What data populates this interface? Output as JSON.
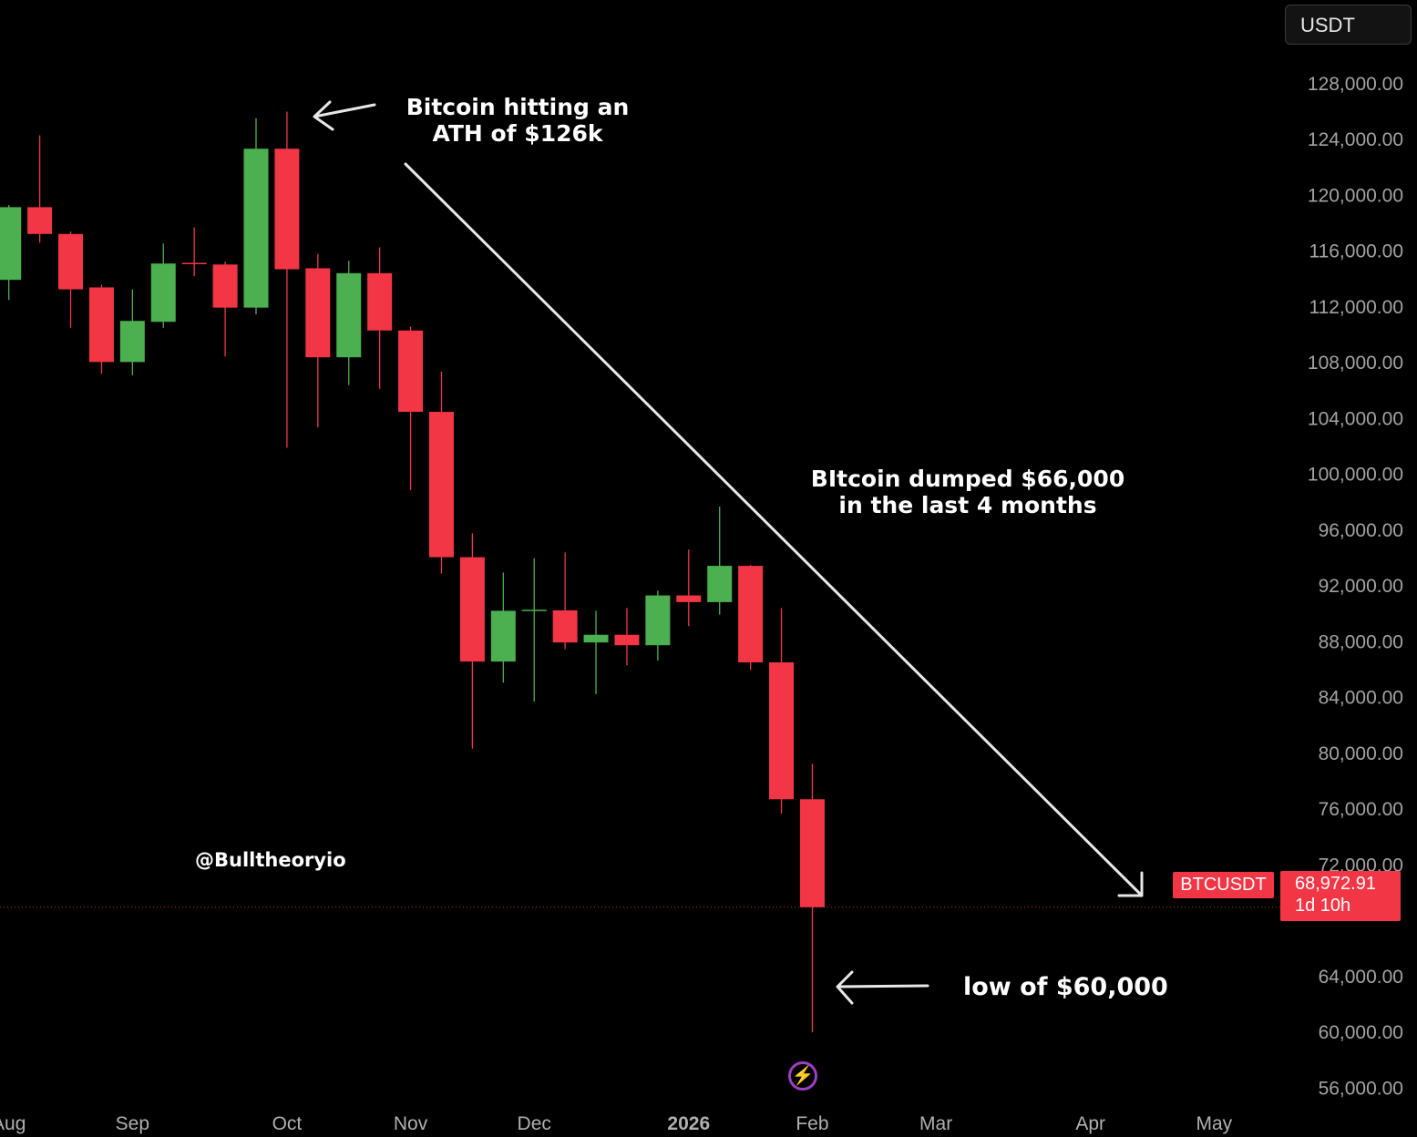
{
  "chart_data": {
    "type": "candlestick",
    "title": "",
    "interval": "weekly",
    "symbol": "BTCUSDT",
    "currency": "USDT",
    "ylim": [
      52500,
      134000
    ],
    "xlim": [
      "2025-08-02",
      "2026-05-19"
    ],
    "grid": false,
    "y_ticks": [
      56000,
      60000,
      64000,
      68000,
      72000,
      76000,
      80000,
      84000,
      88000,
      92000,
      96000,
      100000,
      104000,
      108000,
      112000,
      116000,
      120000,
      124000,
      128000
    ],
    "y_tick_labels": [
      "56,000.00",
      "60,000.00",
      "64,000.00",
      "",
      "72,000.00",
      "76,000.00",
      "80,000.00",
      "84,000.00",
      "88,000.00",
      "92,000.00",
      "96,000.00",
      "100,000.00",
      "104,000.00",
      "108,000.00",
      "112,000.00",
      "116,000.00",
      "120,000.00",
      "124,000.00",
      "128,000.00"
    ],
    "x_ticks": [
      {
        "date": "2025-08-04",
        "label": "Aug",
        "bold": false
      },
      {
        "date": "2025-09-01",
        "label": "Sep",
        "bold": false
      },
      {
        "date": "2025-10-06",
        "label": "Oct",
        "bold": false
      },
      {
        "date": "2025-11-03",
        "label": "Nov",
        "bold": false
      },
      {
        "date": "2025-12-01",
        "label": "Dec",
        "bold": false
      },
      {
        "date": "2026-01-05",
        "label": "2026",
        "bold": true
      },
      {
        "date": "2026-02-02",
        "label": "Feb",
        "bold": false
      },
      {
        "date": "2026-03-02",
        "label": "Mar",
        "bold": false
      },
      {
        "date": "2026-04-06",
        "label": "Apr",
        "bold": false
      },
      {
        "date": "2026-05-04",
        "label": "May",
        "bold": false
      }
    ],
    "candles": [
      {
        "date": "2025-08-04",
        "o": 113940,
        "h": 119300,
        "l": 112500,
        "c": 119150
      },
      {
        "date": "2025-08-11",
        "o": 119150,
        "h": 124300,
        "l": 116600,
        "c": 117230
      },
      {
        "date": "2025-08-18",
        "o": 117230,
        "h": 117400,
        "l": 110500,
        "c": 113260
      },
      {
        "date": "2025-08-25",
        "o": 113400,
        "h": 113600,
        "l": 107200,
        "c": 108050
      },
      {
        "date": "2025-09-01",
        "o": 108050,
        "h": 113260,
        "l": 107100,
        "c": 111000
      },
      {
        "date": "2025-09-08",
        "o": 110930,
        "h": 116550,
        "l": 110500,
        "c": 115110
      },
      {
        "date": "2025-09-15",
        "o": 115110,
        "h": 117700,
        "l": 114200,
        "c": 115000
      },
      {
        "date": "2025-09-22",
        "o": 115040,
        "h": 115250,
        "l": 108450,
        "c": 111950
      },
      {
        "date": "2025-09-29",
        "o": 111950,
        "h": 125530,
        "l": 111470,
        "c": 123340
      },
      {
        "date": "2025-10-06",
        "o": 123340,
        "h": 126000,
        "l": 101900,
        "c": 114700
      },
      {
        "date": "2025-10-13",
        "o": 114770,
        "h": 115800,
        "l": 103380,
        "c": 108390
      },
      {
        "date": "2025-10-20",
        "o": 108390,
        "h": 115310,
        "l": 106400,
        "c": 114420
      },
      {
        "date": "2025-10-27",
        "o": 114420,
        "h": 116270,
        "l": 106130,
        "c": 110310
      },
      {
        "date": "2025-11-03",
        "o": 110310,
        "h": 110580,
        "l": 98860,
        "c": 104480
      },
      {
        "date": "2025-11-10",
        "o": 104480,
        "h": 107360,
        "l": 92890,
        "c": 94060
      },
      {
        "date": "2025-11-17",
        "o": 94060,
        "h": 95770,
        "l": 80340,
        "c": 86580
      },
      {
        "date": "2025-11-24",
        "o": 86580,
        "h": 92960,
        "l": 85070,
        "c": 90220
      },
      {
        "date": "2025-12-01",
        "o": 90220,
        "h": 93990,
        "l": 83700,
        "c": 90250
      },
      {
        "date": "2025-12-08",
        "o": 90250,
        "h": 94400,
        "l": 87470,
        "c": 87950
      },
      {
        "date": "2025-12-15",
        "o": 87950,
        "h": 90220,
        "l": 84250,
        "c": 88500
      },
      {
        "date": "2025-12-22",
        "o": 88500,
        "h": 90420,
        "l": 86310,
        "c": 87750
      },
      {
        "date": "2025-12-29",
        "o": 87750,
        "h": 91660,
        "l": 86650,
        "c": 91320
      },
      {
        "date": "2026-01-05",
        "o": 91320,
        "h": 94610,
        "l": 89120,
        "c": 90840
      },
      {
        "date": "2026-01-12",
        "o": 90840,
        "h": 97690,
        "l": 89940,
        "c": 93440
      },
      {
        "date": "2026-01-19",
        "o": 93440,
        "h": 93500,
        "l": 85970,
        "c": 86520
      },
      {
        "date": "2026-01-26",
        "o": 86520,
        "h": 90420,
        "l": 75680,
        "c": 76710
      },
      {
        "date": "2026-02-02",
        "o": 76710,
        "h": 79250,
        "l": 60000,
        "c": 68972.91
      }
    ],
    "colors": {
      "up": "#4caf50",
      "down": "#f23645",
      "background": "#000000",
      "annotation": "#ffffff",
      "price_line": "#f23645"
    },
    "last_price": {
      "symbol_label": "BTCUSDT",
      "price": "68,972.91",
      "countdown": "1d 10h",
      "value": 68972.91
    },
    "annotations": {
      "ath": [
        "Bitcoin hitting an",
        "ATH of $126k"
      ],
      "dump": [
        "BItcoin dumped $66,000",
        "in the last 4 months"
      ],
      "watermark": "@Bulltheoryio",
      "low": "low of $60,000"
    }
  },
  "header": {
    "currency_button": "USDT"
  },
  "icons": {
    "bottom": "lightning-bolt-icon"
  }
}
